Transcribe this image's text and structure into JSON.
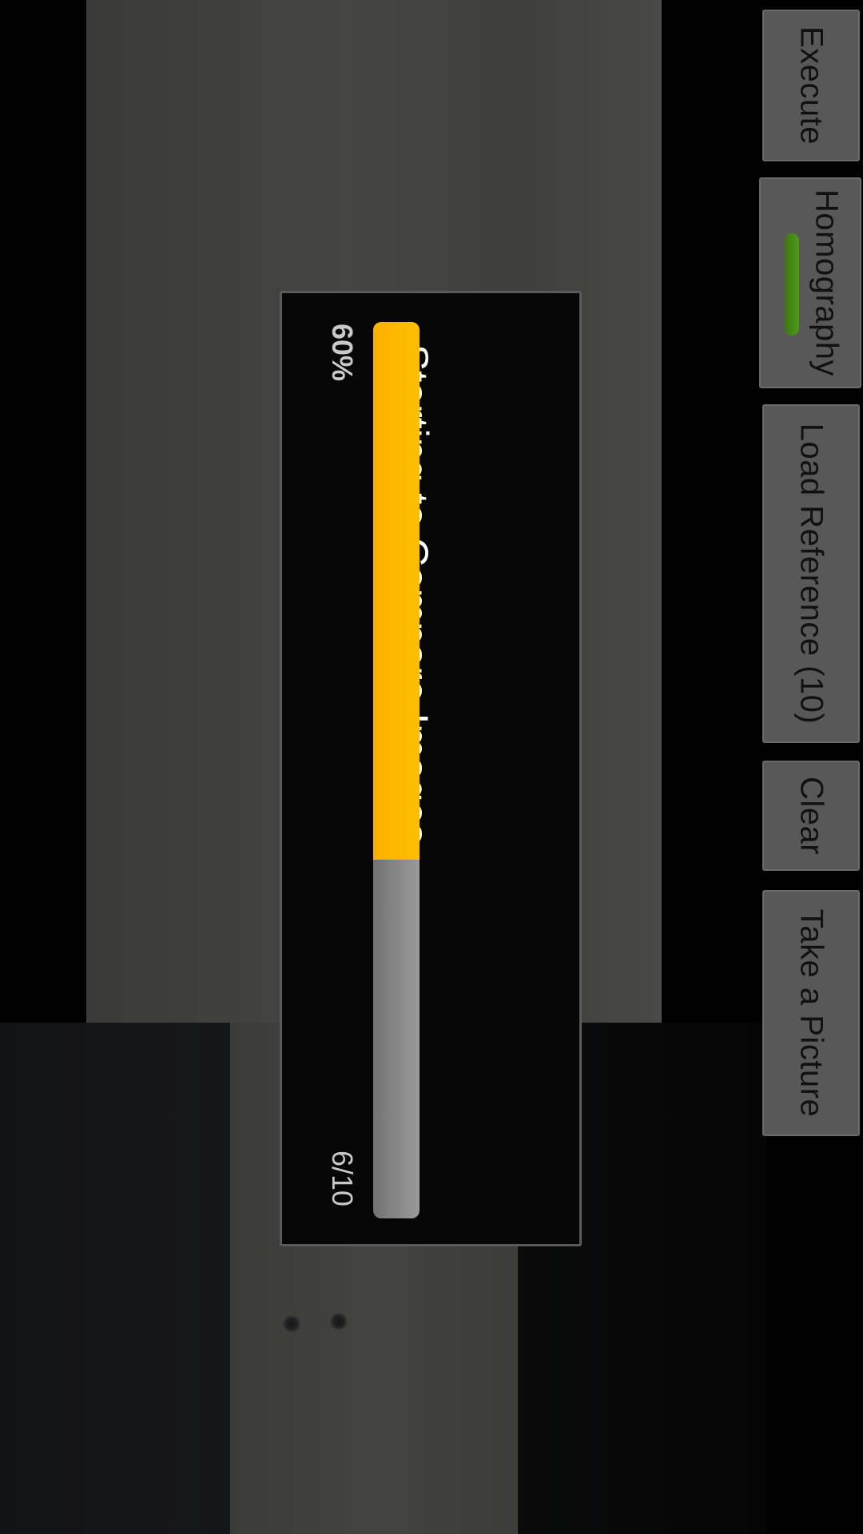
{
  "buttons": {
    "execute": "Execute",
    "homography": "Homography",
    "load_reference": "Load Reference (10)",
    "clear": "Clear",
    "take_picture": "Take a Picture"
  },
  "homography_toggle_on": true,
  "progress_dialog": {
    "title": "Starting to Compare Images",
    "percent_label": "60%",
    "count_label": "6/10",
    "progress_fraction": 0.6
  },
  "colors": {
    "progress_fill": "#ffbf00",
    "progress_track": "#8a8a8a",
    "toggle_on": "#4a8f16",
    "button_bg": "#585858"
  }
}
